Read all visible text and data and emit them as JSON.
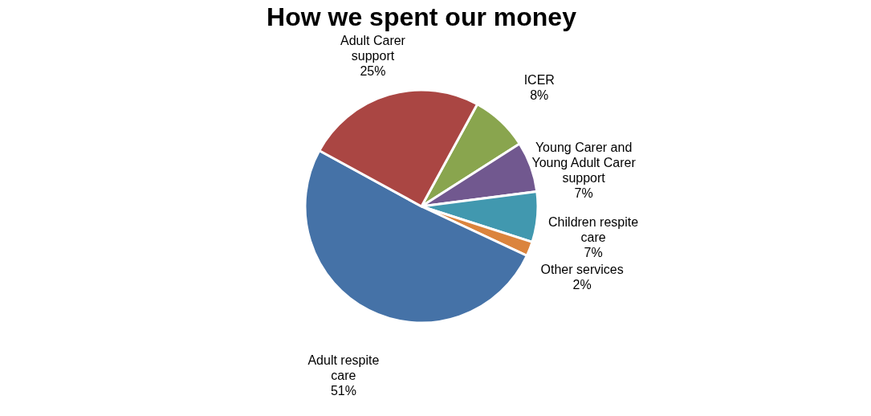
{
  "chart_data": {
    "type": "pie",
    "title": "How we spent our money",
    "categories": [
      "ICER",
      "Young Carer and Young Adult Carer support",
      "Children respite care",
      "Other services",
      "Adult respite care",
      "Adult Carer support"
    ],
    "values": [
      8,
      7,
      7,
      2,
      51,
      25
    ],
    "colors": [
      "#89a54e",
      "#71588f",
      "#4198af",
      "#db843d",
      "#4572a7",
      "#aa4643"
    ],
    "value_labels": [
      "8%",
      "7%",
      "7%",
      "2%",
      "51%",
      "25%"
    ],
    "legend": false
  }
}
